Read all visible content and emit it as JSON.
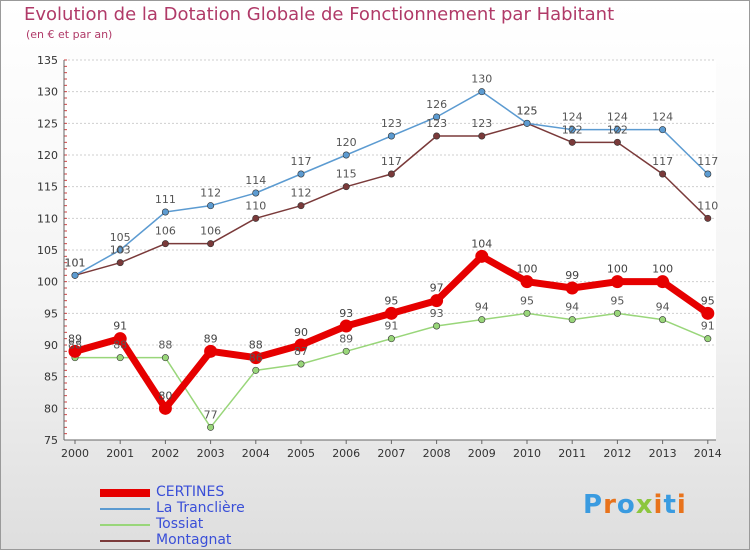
{
  "title": "Evolution de la Dotation Globale de Fonctionnement par Habitant",
  "subtitle": "(en € et par an)",
  "logo": {
    "letters": [
      "P",
      "r",
      "o",
      "x",
      "i",
      "t",
      "i"
    ],
    "colors": [
      "#3a9be0",
      "#e8731c",
      "#3a9be0",
      "#8cc63f",
      "#e8731c",
      "#3a9be0",
      "#e8731c"
    ]
  },
  "chart_data": {
    "type": "line",
    "title": "Evolution de la Dotation Globale de Fonctionnement par Habitant",
    "subtitle": "(en € et par an)",
    "x": [
      "2000",
      "2001",
      "2002",
      "2003",
      "2004",
      "2005",
      "2006",
      "2007",
      "2008",
      "2009",
      "2010",
      "2011",
      "2012",
      "2013",
      "2014"
    ],
    "ylim": [
      75,
      135
    ],
    "yticks": [
      "75",
      "80",
      "85",
      "90",
      "95",
      "100",
      "105",
      "110",
      "115",
      "120",
      "125",
      "130",
      "135"
    ],
    "grid": "horizontal",
    "legend_position": "bottom-left",
    "series": [
      {
        "name": "CERTINES",
        "color": "#e60000",
        "values": [
          89,
          91,
          80,
          89,
          88,
          90,
          93,
          95,
          97,
          104,
          100,
          99,
          100,
          100,
          95
        ],
        "labels": [
          "89",
          "91",
          "80",
          "89",
          "88",
          "90",
          "93",
          "95",
          "97",
          "104",
          "100",
          "99",
          "100",
          "100",
          "95"
        ]
      },
      {
        "name": "La Tranclière",
        "color": "#5c9bd1",
        "values": [
          101,
          105,
          111,
          112,
          114,
          117,
          120,
          123,
          126,
          130,
          125,
          124,
          124,
          124,
          117
        ],
        "labels": [
          "101",
          "105",
          "111",
          "112",
          "114",
          "117",
          "120",
          "123",
          "126",
          "130",
          "125",
          "124",
          "124",
          "124",
          "117"
        ]
      },
      {
        "name": "Tossiat",
        "color": "#99d67a",
        "values": [
          88,
          88,
          88,
          77,
          86,
          87,
          89,
          91,
          93,
          94,
          95,
          94,
          95,
          94,
          91
        ],
        "labels": [
          "88",
          "88",
          "88",
          "77",
          "86",
          "87",
          "89",
          "91",
          "93",
          "94",
          "95",
          "94",
          "95",
          "94",
          "91"
        ]
      },
      {
        "name": "Montagnat",
        "color": "#7a3a3a",
        "values": [
          101,
          103,
          106,
          106,
          110,
          112,
          115,
          117,
          123,
          123,
          125,
          122,
          122,
          117,
          110
        ],
        "labels": [
          "101",
          "103",
          "106",
          "106",
          "110",
          "112",
          "115",
          "117",
          "123",
          "123",
          "125",
          "122",
          "122",
          "117",
          "110"
        ]
      }
    ]
  }
}
